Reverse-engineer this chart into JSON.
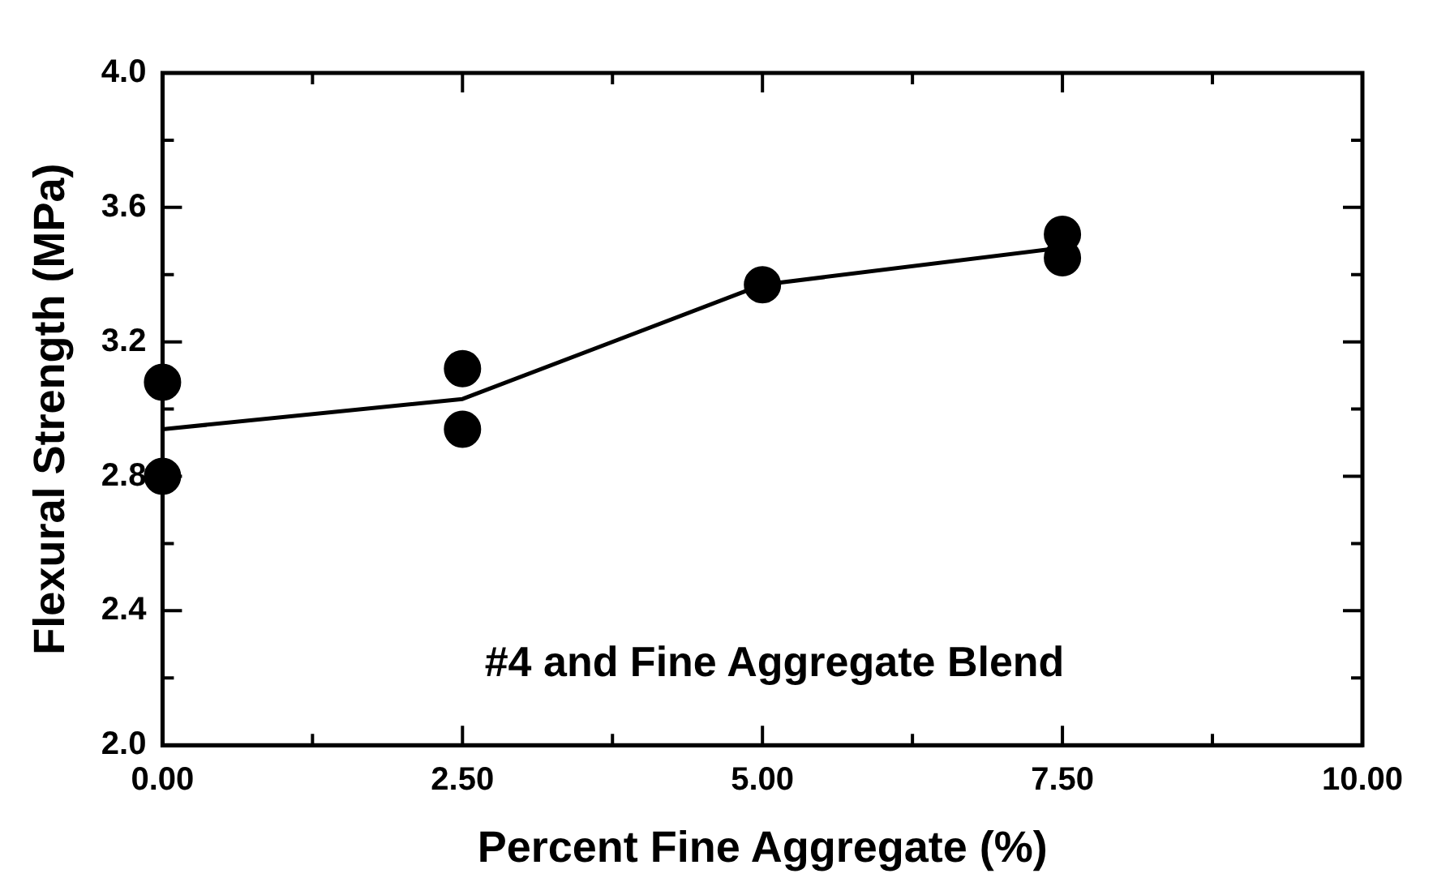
{
  "chart_data": {
    "type": "scatter",
    "xlabel": "Percent Fine Aggregate (%)",
    "ylabel": "Flexural Strength (MPa)",
    "annotations": [
      "#4 and Fine Aggregate Blend"
    ],
    "xlim": [
      0,
      10
    ],
    "ylim": [
      2,
      4
    ],
    "xticks": [
      {
        "value": 0,
        "label": "0.00"
      },
      {
        "value": 1.25,
        "label": null
      },
      {
        "value": 2.5,
        "label": "2.50"
      },
      {
        "value": 3.75,
        "label": null
      },
      {
        "value": 5,
        "label": "5.00"
      },
      {
        "value": 6.25,
        "label": null
      },
      {
        "value": 7.5,
        "label": "7.50"
      },
      {
        "value": 8.75,
        "label": null
      },
      {
        "value": 10,
        "label": "10.00"
      }
    ],
    "yticks": [
      {
        "value": 2,
        "label": "2.0"
      },
      {
        "value": 2.2,
        "label": null
      },
      {
        "value": 2.4,
        "label": "2.4"
      },
      {
        "value": 2.6,
        "label": null
      },
      {
        "value": 2.8,
        "label": "2.8"
      },
      {
        "value": 3,
        "label": null
      },
      {
        "value": 3.2,
        "label": "3.2"
      },
      {
        "value": 3.4,
        "label": null
      },
      {
        "value": 3.6,
        "label": "3.6"
      },
      {
        "value": 3.8,
        "label": null
      },
      {
        "value": 4,
        "label": "4.0"
      }
    ],
    "series": [
      {
        "color": "#000000",
        "marker": "circle",
        "x": [
          0,
          0,
          2.5,
          2.5,
          5,
          7.5,
          7.5
        ],
        "values": [
          3.08,
          2.8,
          3.12,
          2.94,
          3.37,
          3.52,
          3.45
        ]
      },
      {
        "type": "line",
        "color": "#000000",
        "marker": "none",
        "line_style": "solid",
        "x": [
          0,
          2.5,
          5,
          7.5
        ],
        "values": [
          2.94,
          3.03,
          3.37,
          3.48
        ]
      }
    ]
  }
}
